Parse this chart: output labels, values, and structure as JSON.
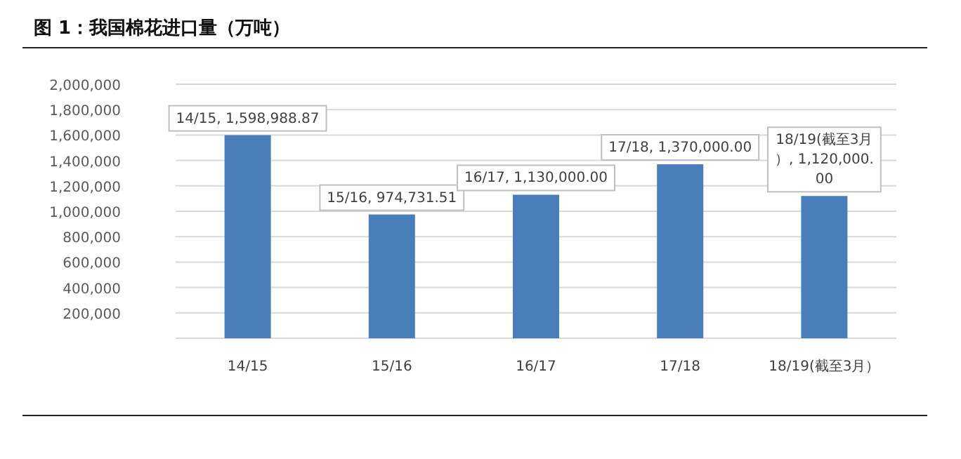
{
  "chart_data": {
    "type": "bar",
    "title": "图 1：我国棉花进口量（万吨）",
    "categories": [
      "14/15",
      "15/16",
      "16/17",
      "17/18",
      "18/19(截至3月）"
    ],
    "values": [
      1598988.87,
      974731.51,
      1130000,
      1370000,
      1120000
    ],
    "value_labels": [
      "14/15, 1,598,988.87",
      "15/16, 974,731.51",
      "16/17, 1,130,000.00",
      "17/18, 1,370,000.00",
      "18/19(截至3月）, 1,120,000.00"
    ],
    "color": "#4a7ebb",
    "ylim": [
      0,
      2000000
    ],
    "yticks": [
      {
        "value": 0,
        "label": null
      },
      "200,000",
      "400,000",
      "600,000",
      "800,000",
      "1,000,000",
      "1,200,000",
      "1,400,000",
      "1,600,000",
      "1,800,000",
      "2,000,000"
    ],
    "grid": "y",
    "legend": false
  }
}
